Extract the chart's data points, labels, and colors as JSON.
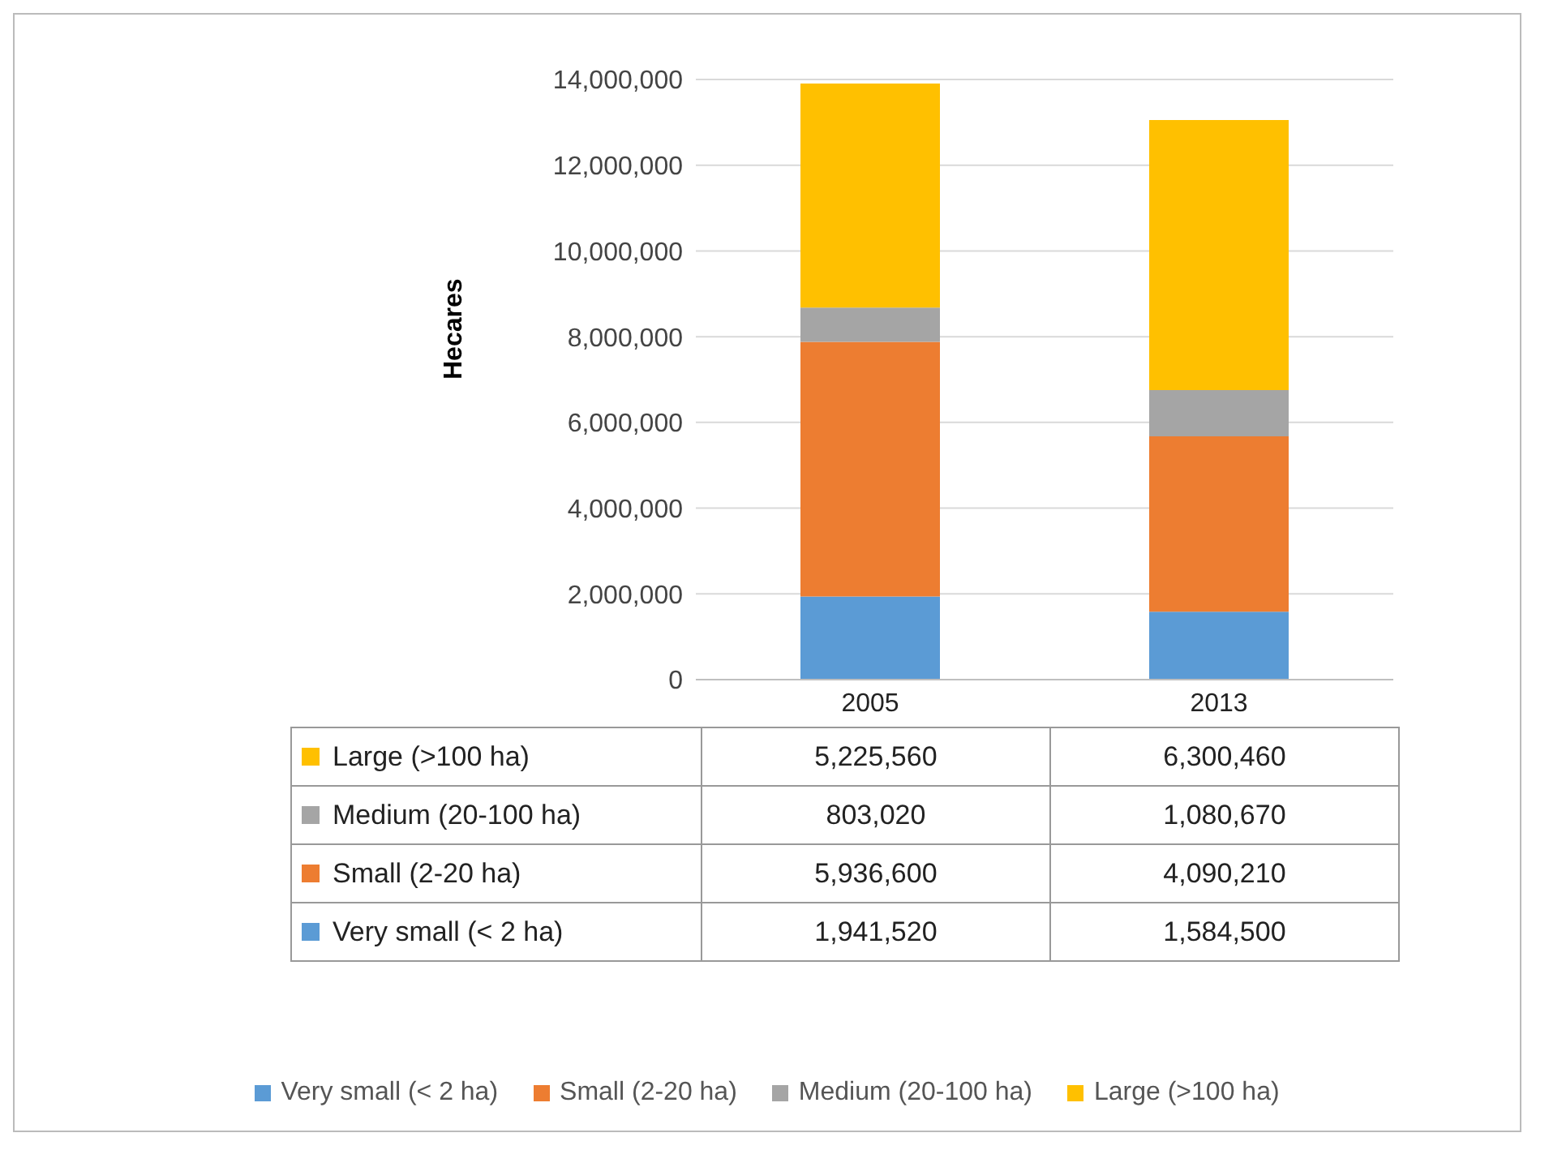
{
  "chart_data": {
    "type": "bar",
    "stacked": true,
    "ylabel": "Hecares",
    "categories": [
      "2005",
      "2013"
    ],
    "series": [
      {
        "name": "Very small (< 2 ha)",
        "color": "#5b9bd5",
        "values": [
          1941520,
          1584500
        ],
        "value_labels": [
          "1,941,520",
          "1,584,500"
        ]
      },
      {
        "name": "Small (2-20 ha)",
        "color": "#ed7d31",
        "values": [
          5936600,
          4090210
        ],
        "value_labels": [
          "5,936,600",
          "4,090,210"
        ]
      },
      {
        "name": "Medium (20-100 ha)",
        "color": "#a5a5a5",
        "values": [
          803020,
          1080670
        ],
        "value_labels": [
          "803,020",
          "1,080,670"
        ]
      },
      {
        "name": "Large (>100 ha)",
        "color": "#ffc000",
        "values": [
          5225560,
          6300460
        ],
        "value_labels": [
          "5,225,560",
          "6,300,460"
        ]
      }
    ],
    "ylim": [
      0,
      14000000
    ],
    "yticks": [
      0,
      {
        "value": 2000000,
        "label": "2,000,000"
      },
      {
        "value": 4000000,
        "label": "4,000,000"
      },
      {
        "value": 6000000,
        "label": "6,000,000"
      },
      {
        "value": 8000000,
        "label": "8,000,000"
      },
      {
        "value": 10000000,
        "label": "10,000,000"
      },
      {
        "value": 12000000,
        "label": "12,000,000"
      },
      {
        "value": 14000000,
        "label": "14,000,000"
      }
    ],
    "grid": "y",
    "legend": "bottom"
  }
}
